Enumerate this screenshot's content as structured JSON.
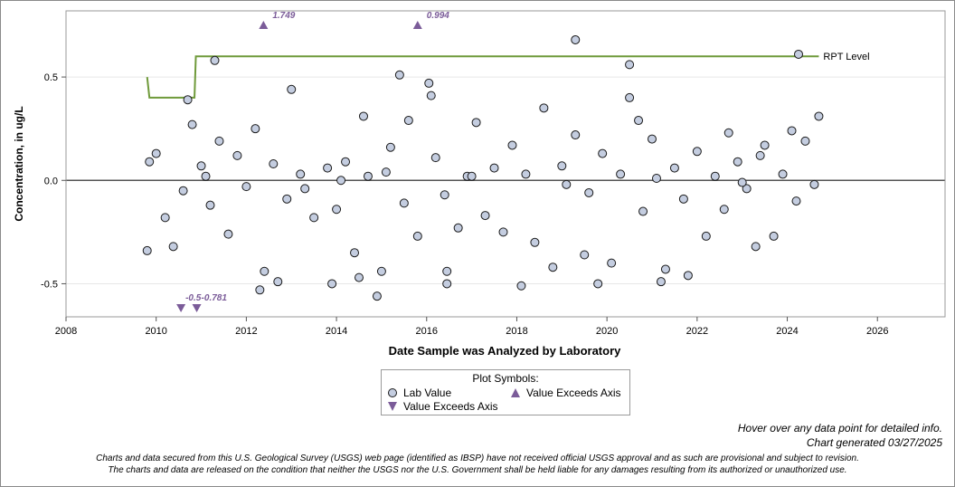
{
  "chart_data": {
    "type": "scatter",
    "xlabel": "Date Sample was Analyzed by Laboratory",
    "ylabel": "Concentration, in ug/L",
    "xlim": [
      2008,
      2027.5
    ],
    "ylim": [
      -0.66,
      0.82
    ],
    "xticks": [
      "2008",
      "2010",
      "2012",
      "2014",
      "2016",
      "2018",
      "2020",
      "2022",
      "2024",
      "2026"
    ],
    "yticks": [
      "-0.5",
      "0.0",
      "0.5"
    ],
    "grid": true,
    "zero_line": true,
    "rpt_level": {
      "label": "RPT Level",
      "x": [
        2009.8,
        2009.85,
        2010.85,
        2010.88,
        2024.7
      ],
      "y": [
        0.5,
        0.4,
        0.4,
        0.6,
        0.6
      ]
    },
    "exceeds_up": [
      {
        "x": 2012.38,
        "y": 1.749,
        "label": "1.749"
      },
      {
        "x": 2015.8,
        "y": 0.994,
        "label": "0.994"
      }
    ],
    "exceeds_down": [
      {
        "x": 2010.55,
        "y": -0.5,
        "label": "-0.5"
      },
      {
        "x": 2010.9,
        "y": -0.781,
        "label": "-0.781"
      }
    ],
    "series": [
      {
        "name": "Lab Value",
        "points": [
          [
            2009.8,
            -0.34
          ],
          [
            2009.85,
            0.09
          ],
          [
            2010.38,
            -0.32
          ],
          [
            2010.7,
            0.39
          ],
          [
            2011.3,
            0.58
          ],
          [
            2013,
            0.44
          ],
          [
            2013.9,
            -0.5
          ],
          [
            2014.6,
            0.31
          ],
          [
            2014.9,
            -0.56
          ],
          [
            2015.4,
            0.51
          ],
          [
            2015.6,
            0.29
          ],
          [
            2016.05,
            0.47
          ],
          [
            2016.1,
            0.41
          ],
          [
            2016.45,
            -0.5
          ],
          [
            2016.45,
            -0.44
          ],
          [
            2018.1,
            -0.51
          ],
          [
            2018.6,
            0.35
          ],
          [
            2019.3,
            0.68
          ],
          [
            2019.3,
            0.22
          ],
          [
            2019.5,
            -0.36
          ],
          [
            2020.5,
            0.56
          ],
          [
            2020.5,
            0.4
          ],
          [
            2020.7,
            0.29
          ],
          [
            2021.2,
            -0.49
          ],
          [
            2021.3,
            -0.43
          ],
          [
            2021.8,
            -0.46
          ],
          [
            2024.25,
            0.61
          ],
          [
            2024.7,
            0.31
          ],
          [
            2024.1,
            0.24
          ],
          [
            2023.5,
            0.17
          ],
          [
            2023.3,
            -0.32
          ],
          [
            2022.7,
            0.23
          ],
          [
            2010.0,
            0.13
          ],
          [
            2010.2,
            -0.18
          ],
          [
            2010.6,
            -0.05
          ],
          [
            2010.8,
            0.27
          ],
          [
            2011.0,
            0.07
          ],
          [
            2011.2,
            -0.12
          ],
          [
            2011.4,
            0.19
          ],
          [
            2011.6,
            -0.26
          ],
          [
            2011.8,
            0.12
          ],
          [
            2012.0,
            -0.03
          ],
          [
            2012.2,
            0.25
          ],
          [
            2012.3,
            -0.53
          ],
          [
            2012.4,
            -0.44
          ],
          [
            2012.7,
            -0.49
          ],
          [
            2012.6,
            0.08
          ],
          [
            2012.9,
            -0.09
          ],
          [
            2013.2,
            0.03
          ],
          [
            2013.5,
            -0.18
          ],
          [
            2013.8,
            0.06
          ],
          [
            2014.0,
            -0.14
          ],
          [
            2014.2,
            0.09
          ],
          [
            2014.4,
            -0.35
          ],
          [
            2014.5,
            -0.47
          ],
          [
            2014.7,
            0.02
          ],
          [
            2015.0,
            -0.44
          ],
          [
            2015.2,
            0.16
          ],
          [
            2015.5,
            -0.11
          ],
          [
            2015.8,
            -0.27
          ],
          [
            2016.2,
            0.11
          ],
          [
            2016.4,
            -0.07
          ],
          [
            2016.7,
            -0.23
          ],
          [
            2016.9,
            0.02
          ],
          [
            2017.1,
            0.28
          ],
          [
            2017.3,
            -0.17
          ],
          [
            2017.5,
            0.06
          ],
          [
            2017.7,
            -0.25
          ],
          [
            2017.9,
            0.17
          ],
          [
            2018.2,
            0.03
          ],
          [
            2018.4,
            -0.3
          ],
          [
            2018.8,
            -0.42
          ],
          [
            2019.0,
            0.07
          ],
          [
            2019.6,
            -0.06
          ],
          [
            2019.8,
            -0.5
          ],
          [
            2019.9,
            0.13
          ],
          [
            2020.1,
            -0.4
          ],
          [
            2020.3,
            0.03
          ],
          [
            2020.8,
            -0.15
          ],
          [
            2021.0,
            0.2
          ],
          [
            2021.5,
            0.06
          ],
          [
            2021.7,
            -0.09
          ],
          [
            2022.0,
            0.14
          ],
          [
            2022.2,
            -0.27
          ],
          [
            2022.4,
            0.02
          ],
          [
            2022.6,
            -0.14
          ],
          [
            2022.9,
            0.09
          ],
          [
            2023.1,
            -0.04
          ],
          [
            2023.4,
            0.12
          ],
          [
            2023.7,
            -0.27
          ],
          [
            2023.9,
            0.03
          ],
          [
            2024.2,
            -0.1
          ],
          [
            2024.4,
            0.19
          ],
          [
            2024.6,
            -0.02
          ],
          [
            2014.1,
            0.0
          ],
          [
            2017.0,
            0.02
          ],
          [
            2019.1,
            -0.02
          ],
          [
            2021.1,
            0.01
          ],
          [
            2023.0,
            -0.01
          ],
          [
            2015.1,
            0.04
          ],
          [
            2013.3,
            -0.04
          ],
          [
            2011.1,
            0.02
          ]
        ]
      }
    ]
  },
  "legend": {
    "title": "Plot Symbols:",
    "lab_value": "Lab Value",
    "exceeds_up": "Value Exceeds Axis",
    "exceeds_down": "Value Exceeds Axis"
  },
  "notes": {
    "hover": "Hover over any data point for detailed info.",
    "generated": "Chart generated 03/27/2025",
    "disclaimer1": "Charts and data secured from this U.S. Geological Survey (USGS) web page (identified as IBSP) have not received official USGS approval and as such are provisional and subject to revision.",
    "disclaimer2": "The charts and data are released on the condition that neither the USGS nor the U.S. Government shall be held liable for any damages resulting from its authorized or unauthorized use."
  },
  "colors": {
    "marker_fill": "#c4cde0",
    "marker_stroke": "#1a1a1a",
    "rpt_line": "#6f9a3a",
    "exceed_marker": "#7b5c99",
    "zero_line": "#555555",
    "grid": "#e6e6e6"
  }
}
